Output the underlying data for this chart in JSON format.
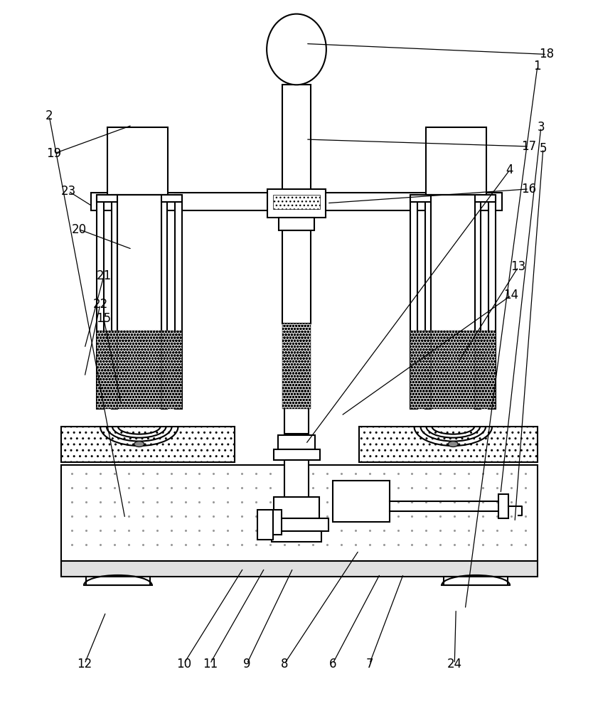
{
  "bg_color": "#ffffff",
  "line_color": "#000000",
  "label_color": "#000000",
  "figure_width": 8.34,
  "figure_height": 10.0,
  "dpi": 100,
  "labels": [
    [
      18,
      430,
      60,
      770,
      75
    ],
    [
      17,
      430,
      195,
      745,
      205
    ],
    [
      16,
      460,
      285,
      745,
      265
    ],
    [
      19,
      185,
      175,
      75,
      215
    ],
    [
      23,
      130,
      290,
      95,
      268
    ],
    [
      20,
      185,
      350,
      110,
      322
    ],
    [
      21,
      118,
      490,
      145,
      388
    ],
    [
      22,
      118,
      530,
      140,
      428
    ],
    [
      15,
      170,
      570,
      145,
      448
    ],
    [
      13,
      645,
      510,
      730,
      375
    ],
    [
      14,
      480,
      585,
      720,
      415
    ],
    [
      4,
      430,
      625,
      718,
      238
    ],
    [
      3,
      705,
      695,
      762,
      178
    ],
    [
      2,
      175,
      730,
      68,
      162
    ],
    [
      5,
      725,
      735,
      765,
      208
    ],
    [
      1,
      655,
      858,
      757,
      92
    ],
    [
      12,
      148,
      862,
      118,
      935
    ],
    [
      10,
      342,
      800,
      258,
      935
    ],
    [
      11,
      372,
      800,
      295,
      935
    ],
    [
      9,
      412,
      800,
      347,
      935
    ],
    [
      8,
      505,
      775,
      400,
      935
    ],
    [
      6,
      535,
      808,
      468,
      935
    ],
    [
      7,
      568,
      808,
      520,
      935
    ],
    [
      24,
      642,
      858,
      640,
      935
    ]
  ]
}
